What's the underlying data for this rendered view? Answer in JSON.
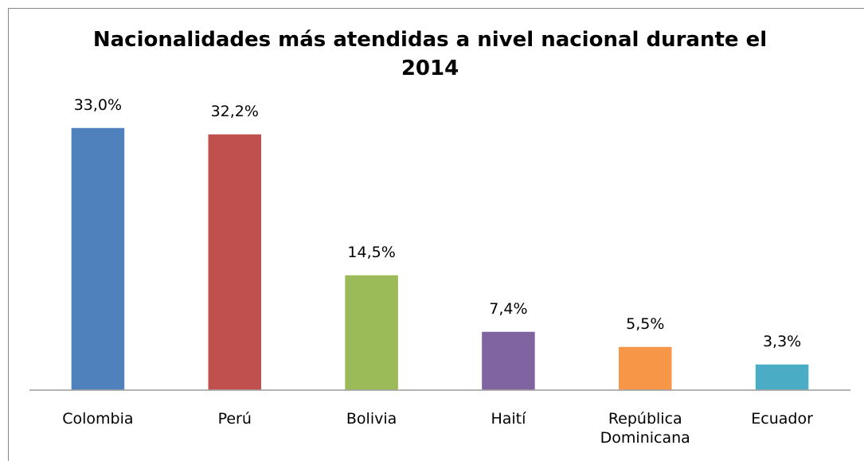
{
  "chart_data": {
    "type": "bar",
    "title": "Nacionalidades más atendidas a nivel nacional durante el 2014",
    "categories": [
      "Colombia",
      "Perú",
      "Bolivia",
      "Haití",
      "República Dominicana",
      "Ecuador"
    ],
    "values": [
      33.0,
      32.2,
      14.5,
      7.4,
      5.5,
      3.3
    ],
    "value_labels": [
      "33,0%",
      "32,2%",
      "14,5%",
      "7,4%",
      "5,5%",
      "3,3%"
    ],
    "colors": [
      "#4f81bd",
      "#c0504d",
      "#9bbb59",
      "#8064a2",
      "#f79646",
      "#4bacc6"
    ]
  }
}
